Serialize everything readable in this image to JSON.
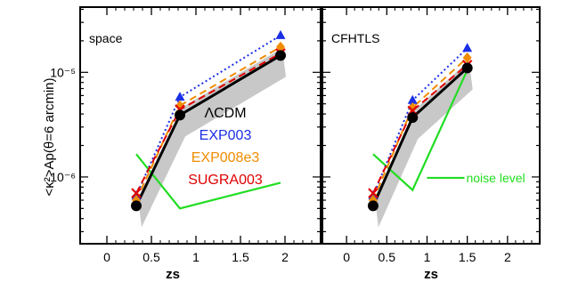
{
  "chart_data": {
    "ylabel": "<κ²>Ap(θ=6 arcmin)",
    "xlabel": "zs",
    "xlim": [
      -0.3,
      2.4
    ],
    "ylim": [
      2.3e-07,
      4.2e-05
    ],
    "yscale": "log",
    "x_ticks": [
      "0",
      "0.5",
      "1",
      "1.5",
      "2"
    ],
    "y_ticks": [
      "10⁻⁶",
      "10⁻⁵"
    ],
    "legend_placement": "center-left",
    "panels": [
      {
        "type": "line",
        "title": "space",
        "series": [
          {
            "name": "ΛCDM",
            "color": "#000000",
            "style": "solid",
            "marker": "circle",
            "x": [
              0.33,
              0.82,
              1.95
            ],
            "y": [
              5.3e-07,
              3.9e-06,
              1.45e-05
            ]
          },
          {
            "name": "EXP003",
            "color": "#1a2ee6",
            "style": "dotted",
            "marker": "triangle",
            "x": [
              0.33,
              0.82,
              1.95
            ],
            "y": [
              6.6e-07,
              5.8e-06,
              2.25e-05
            ]
          },
          {
            "name": "EXP008e3",
            "color": "#f08c00",
            "style": "dashed",
            "marker": "diamond",
            "x": [
              0.33,
              0.82,
              1.95
            ],
            "y": [
              6e-07,
              4.8e-06,
              1.75e-05
            ]
          },
          {
            "name": "SUGRA003",
            "color": "#e00000",
            "style": "dashed",
            "marker": "cross",
            "x": [
              0.33,
              0.82,
              1.95
            ],
            "y": [
              7e-07,
              4.4e-06,
              1.52e-05
            ]
          }
        ],
        "noise": {
          "color": "#22dd22",
          "x": [
            0.33,
            0.82,
            1.95
          ],
          "y": [
            1.65e-06,
            5e-07,
            8.8e-07
          ]
        }
      },
      {
        "type": "line",
        "title": "CFHTLS",
        "series": [
          {
            "name": "ΛCDM",
            "color": "#000000",
            "style": "solid",
            "marker": "circle",
            "x": [
              0.33,
              0.82,
              1.5
            ],
            "y": [
              5.3e-07,
              3.7e-06,
              1.1e-05
            ]
          },
          {
            "name": "EXP003",
            "color": "#1a2ee6",
            "style": "dotted",
            "marker": "triangle",
            "x": [
              0.33,
              0.82,
              1.5
            ],
            "y": [
              6.6e-07,
              5.4e-06,
              1.7e-05
            ]
          },
          {
            "name": "EXP008e3",
            "color": "#f08c00",
            "style": "dashed",
            "marker": "diamond",
            "x": [
              0.33,
              0.82,
              1.5
            ],
            "y": [
              6e-07,
              4.6e-06,
              1.38e-05
            ]
          },
          {
            "name": "SUGRA003",
            "color": "#e00000",
            "style": "dashed",
            "marker": "cross",
            "x": [
              0.33,
              0.82,
              1.5
            ],
            "y": [
              7e-07,
              4.3e-06,
              1.18e-05
            ]
          }
        ],
        "noise": {
          "color": "#22dd22",
          "x": [
            0.33,
            0.82,
            1.5
          ],
          "y": [
            1.65e-06,
            7.5e-07,
            1.05e-05
          ]
        },
        "annotation": "noise level"
      }
    ]
  }
}
